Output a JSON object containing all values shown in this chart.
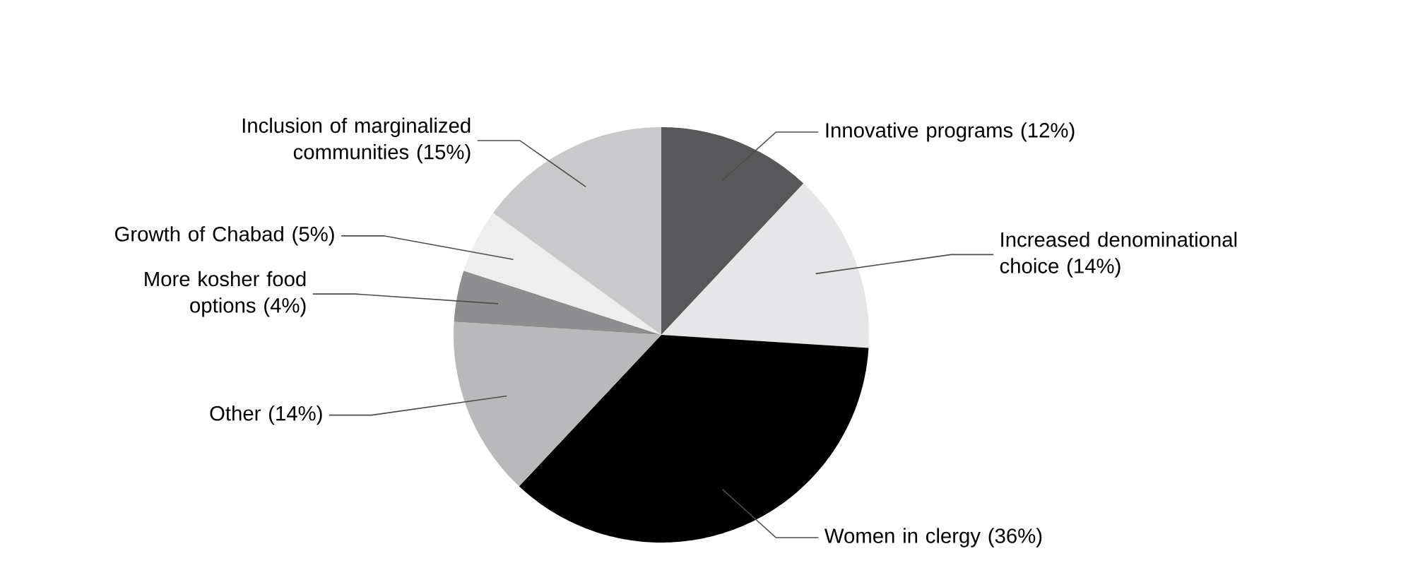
{
  "chart_data": {
    "type": "pie",
    "categories": [
      "Innovative programs",
      "Increased denominational choice",
      "Women in clergy",
      "Other",
      "More kosher food options",
      "Growth of Chabad",
      "Inclusion of marginalized communities"
    ],
    "values": [
      12,
      14,
      36,
      14,
      4,
      5,
      15
    ],
    "value_labels": [
      "(12%)",
      "(14%)",
      "(36%)",
      "(14%)",
      "(4%)",
      "(5%)",
      "(15%)"
    ],
    "colors": [
      "#58585a",
      "#e6e6e8",
      "#000000",
      "#b9b9bb",
      "#8e8e90",
      "#eeeeef",
      "#c9c9cb"
    ]
  }
}
